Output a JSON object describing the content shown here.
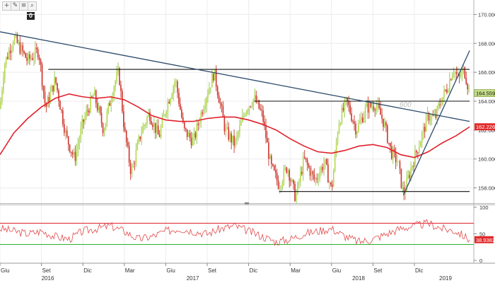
{
  "toolbar": {
    "icons": [
      "plus-icon",
      "pencil-icon",
      "lines-icon",
      "magnifier-icon"
    ],
    "badge": "0"
  },
  "chart_data": [
    {
      "type": "candlestick",
      "grid": true,
      "ylim": [
        157,
        171
      ],
      "y_ticks": [
        "158.0000",
        "160.0000",
        "162.0000",
        "164.0000",
        "166.0000",
        "168.0000",
        "170.0000"
      ],
      "x_ticks": [
        "Giu",
        "Set",
        "Dic",
        "Mar",
        "Giu",
        "Set",
        "Dic",
        "Mar",
        "Giu",
        "Set",
        "Dic"
      ],
      "x_tick_months": [
        0,
        3,
        6,
        9,
        12,
        15,
        18,
        21,
        24,
        27,
        30
      ],
      "year_labels": [
        {
          "text": "2016",
          "month": 3
        },
        {
          "text": "2017",
          "month": 13.5
        },
        {
          "text": "2018",
          "month": 25.5
        },
        {
          "text": "2019",
          "month": 31.8
        }
      ],
      "price_path": [
        [
          0,
          163.5
        ],
        [
          0.3,
          166.5
        ],
        [
          1,
          168.4
        ],
        [
          2,
          166.8
        ],
        [
          2.8,
          167.5
        ],
        [
          3.3,
          163.5
        ],
        [
          4,
          165.5
        ],
        [
          4.8,
          161.5
        ],
        [
          5.4,
          160.0
        ],
        [
          6,
          162.5
        ],
        [
          6.8,
          164.5
        ],
        [
          7.5,
          162.0
        ],
        [
          8.2,
          165.0
        ],
        [
          8.6,
          166.0
        ],
        [
          9,
          162.0
        ],
        [
          9.5,
          159.0
        ],
        [
          10.2,
          161.8
        ],
        [
          10.8,
          163.2
        ],
        [
          11.5,
          161.5
        ],
        [
          12,
          163.5
        ],
        [
          12.7,
          165.5
        ],
        [
          13.3,
          162.0
        ],
        [
          14,
          161.2
        ],
        [
          14.8,
          164.0
        ],
        [
          15.5,
          166.0
        ],
        [
          16.3,
          162.0
        ],
        [
          17,
          161.0
        ],
        [
          17.8,
          163.5
        ],
        [
          18.4,
          164.2
        ],
        [
          19,
          163.0
        ],
        [
          19.6,
          159.5
        ],
        [
          20.2,
          158.2
        ],
        [
          20.8,
          159.5
        ],
        [
          21.4,
          157.3
        ],
        [
          22,
          160.0
        ],
        [
          22.8,
          158.5
        ],
        [
          23.5,
          159.8
        ],
        [
          24,
          157.8
        ],
        [
          24.5,
          162.5
        ],
        [
          25.1,
          164.0
        ],
        [
          25.8,
          162.0
        ],
        [
          26.5,
          163.5
        ],
        [
          27.2,
          163.8
        ],
        [
          27.8,
          162.5
        ],
        [
          28.3,
          160.5
        ],
        [
          28.8,
          159.8
        ],
        [
          29.2,
          157.5
        ],
        [
          29.8,
          159.5
        ],
        [
          30.4,
          161.2
        ],
        [
          31,
          163.0
        ],
        [
          31.5,
          162.8
        ],
        [
          31.9,
          164.0
        ],
        [
          32.4,
          165.0
        ],
        [
          32.8,
          166.3
        ],
        [
          33.2,
          165.5
        ],
        [
          33.6,
          166.2
        ],
        [
          34,
          164.559
        ]
      ],
      "moving_average": [
        [
          0,
          160.3
        ],
        [
          1,
          161.8
        ],
        [
          2,
          162.8
        ],
        [
          3,
          163.6
        ],
        [
          4,
          164.2
        ],
        [
          5,
          164.5
        ],
        [
          6,
          164.3
        ],
        [
          7,
          164.2
        ],
        [
          8,
          164.3
        ],
        [
          9,
          164.1
        ],
        [
          10,
          163.6
        ],
        [
          11,
          163.0
        ],
        [
          12,
          162.7
        ],
        [
          13,
          162.6
        ],
        [
          14,
          162.6
        ],
        [
          15,
          162.8
        ],
        [
          16,
          162.9
        ],
        [
          17,
          162.9
        ],
        [
          18,
          162.7
        ],
        [
          19,
          162.4
        ],
        [
          20,
          162.0
        ],
        [
          21,
          161.4
        ],
        [
          22,
          160.9
        ],
        [
          23,
          160.5
        ],
        [
          24,
          160.4
        ],
        [
          25,
          160.6
        ],
        [
          26,
          160.9
        ],
        [
          27,
          161.0
        ],
        [
          28,
          160.8
        ],
        [
          29,
          160.3
        ],
        [
          30,
          160.1
        ],
        [
          31,
          160.5
        ],
        [
          32,
          161.1
        ],
        [
          33,
          161.6
        ],
        [
          34,
          162.226
        ]
      ],
      "last_price": {
        "value": 164.559,
        "label": "164.5590"
      },
      "ma_value": {
        "value": 162.226,
        "label": "162.2260"
      },
      "trendlines": [
        {
          "name": "descending-trendline",
          "from": [
            0,
            168.8
          ],
          "to": [
            34,
            162.6
          ]
        },
        {
          "name": "rising-trendline",
          "from": [
            29.2,
            157.5
          ],
          "to": [
            34,
            167.5
          ]
        }
      ],
      "horizontal_levels": [
        {
          "name": "resistance-166",
          "from": 3.5,
          "to": 34,
          "value": 166.2
        },
        {
          "name": "resistance-164",
          "from": 18.4,
          "to": 34,
          "value": 164.0
        },
        {
          "name": "support-158",
          "from": 20.2,
          "to": 34,
          "value": 157.75
        }
      ],
      "annotation": "600"
    },
    {
      "type": "line",
      "ylim": [
        0,
        100
      ],
      "y_ticks": [
        "100",
        "50",
        "0"
      ],
      "bands": [
        70,
        30
      ],
      "series": [
        {
          "values": [
            60,
            55,
            50,
            55,
            45,
            40,
            55,
            60,
            65,
            55,
            40,
            45,
            55,
            60,
            55,
            50,
            60,
            65,
            55,
            45,
            35,
            40,
            50,
            55,
            60,
            45,
            35,
            40,
            50,
            60,
            65,
            70,
            60,
            55,
            38.9382
          ]
        }
      ],
      "last_value": {
        "value": 38.9382,
        "label": "38.9382"
      }
    }
  ]
}
